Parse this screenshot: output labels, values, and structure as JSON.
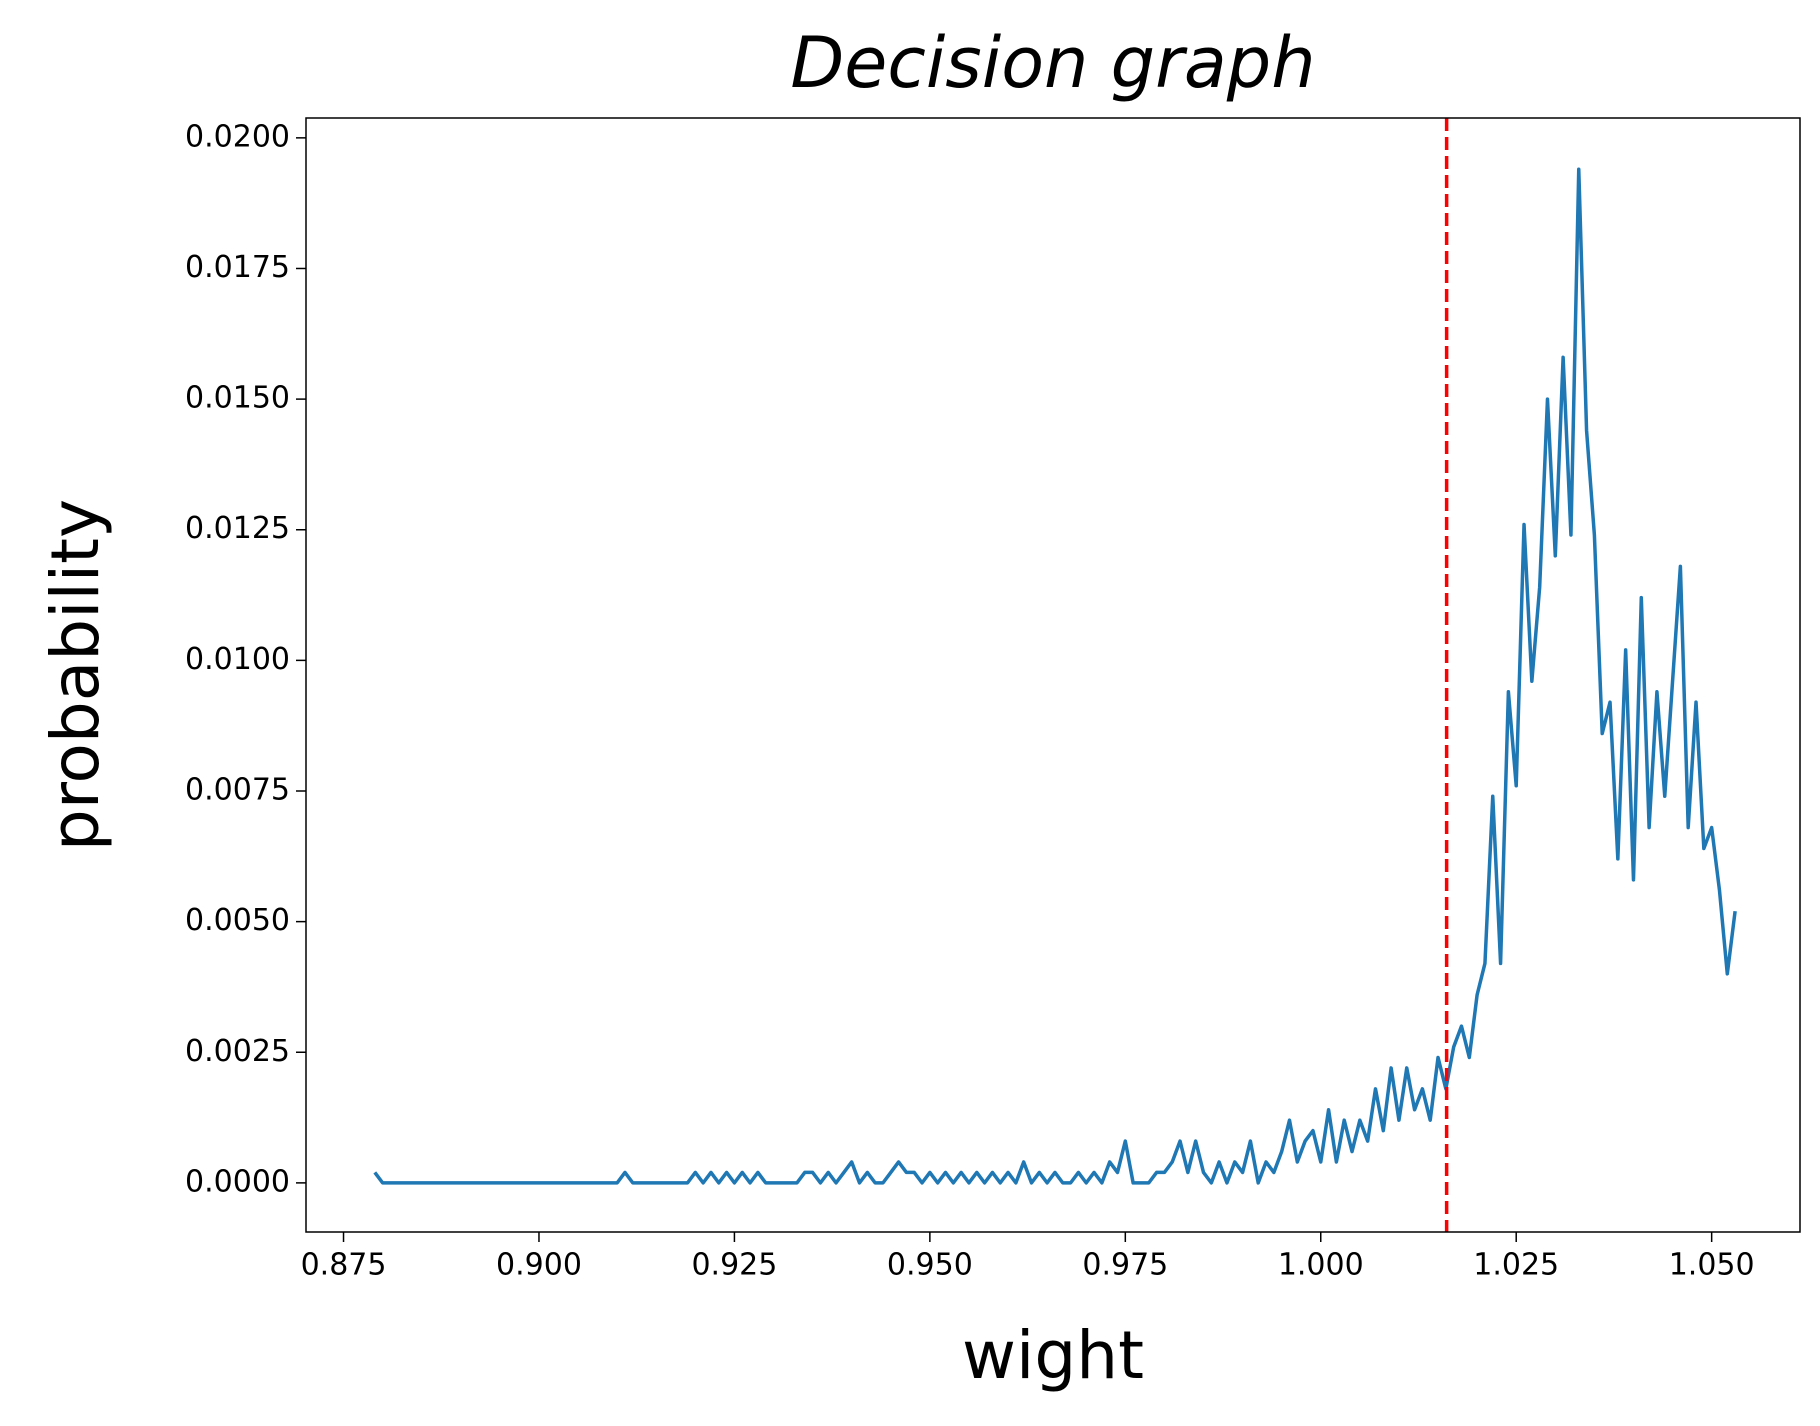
{
  "chart_data": {
    "type": "line",
    "title": "Decision graph",
    "x_label": "wight",
    "y_label": "probability",
    "x": [
      0.879,
      0.88,
      0.91,
      0.911,
      0.912,
      0.919,
      0.92,
      0.921,
      0.922,
      0.923,
      0.924,
      0.925,
      0.926,
      0.927,
      0.928,
      0.929,
      0.933,
      0.934,
      0.935,
      0.936,
      0.937,
      0.938,
      0.939,
      0.94,
      0.941,
      0.942,
      0.943,
      0.944,
      0.945,
      0.946,
      0.947,
      0.948,
      0.949,
      0.95,
      0.951,
      0.952,
      0.953,
      0.954,
      0.955,
      0.956,
      0.957,
      0.958,
      0.959,
      0.96,
      0.961,
      0.962,
      0.963,
      0.964,
      0.965,
      0.966,
      0.967,
      0.968,
      0.969,
      0.97,
      0.971,
      0.972,
      0.973,
      0.974,
      0.975,
      0.976,
      0.978,
      0.979,
      0.98,
      0.981,
      0.982,
      0.983,
      0.984,
      0.985,
      0.986,
      0.987,
      0.988,
      0.989,
      0.99,
      0.991,
      0.992,
      0.993,
      0.994,
      0.995,
      0.996,
      0.997,
      0.998,
      0.999,
      1.0,
      1.001,
      1.002,
      1.003,
      1.004,
      1.005,
      1.006,
      1.007,
      1.008,
      1.009,
      1.01,
      1.011,
      1.012,
      1.013,
      1.014,
      1.015,
      1.016,
      1.017,
      1.018,
      1.019,
      1.02,
      1.021,
      1.022,
      1.023,
      1.024,
      1.025,
      1.026,
      1.027,
      1.028,
      1.029,
      1.03,
      1.031,
      1.032,
      1.033,
      1.034,
      1.035,
      1.036,
      1.037,
      1.038,
      1.039,
      1.04,
      1.041,
      1.042,
      1.043,
      1.044,
      1.045,
      1.046,
      1.047,
      1.048,
      1.049,
      1.05,
      1.051,
      1.052,
      1.053
    ],
    "series": [
      {
        "color": "#1f77b4",
        "values": [
          0.0002,
          0,
          0,
          0.0002,
          0,
          0,
          0.0002,
          0,
          0.0002,
          0,
          0.0002,
          0,
          0.0002,
          0,
          0.0002,
          0,
          0,
          0.0002,
          0.0002,
          0,
          0.0002,
          0,
          0.0002,
          0.0004,
          0,
          0.0002,
          0,
          0,
          0.0002,
          0.0004,
          0.0002,
          0.0002,
          0,
          0.0002,
          0,
          0.0002,
          0,
          0.0002,
          0,
          0.0002,
          0,
          0.0002,
          0,
          0.0002,
          0,
          0.0004,
          0,
          0.0002,
          0,
          0.0002,
          0,
          0,
          0.0002,
          0,
          0.0002,
          0,
          0.0004,
          0.0002,
          0.0008,
          0,
          0,
          0.0002,
          0.0002,
          0.0004,
          0.0008,
          0.0002,
          0.0008,
          0.0002,
          0,
          0.0004,
          0,
          0.0004,
          0.0002,
          0.0008,
          0,
          0.0004,
          0.0002,
          0.0006,
          0.0012,
          0.0004,
          0.0008,
          0.001,
          0.0004,
          0.0014,
          0.0004,
          0.0012,
          0.0006,
          0.0012,
          0.0008,
          0.0018,
          0.001,
          0.0022,
          0.0012,
          0.0022,
          0.0014,
          0.0018,
          0.0012,
          0.0024,
          0.0018,
          0.0026,
          0.003,
          0.0024,
          0.0036,
          0.0042,
          0.0074,
          0.0042,
          0.0094,
          0.0076,
          0.0126,
          0.0096,
          0.0114,
          0.015,
          0.012,
          0.0158,
          0.0124,
          0.0194,
          0.0144,
          0.0124,
          0.0086,
          0.0092,
          0.0062,
          0.0102,
          0.0058,
          0.0112,
          0.0068,
          0.0094,
          0.0074,
          0.0096,
          0.0118,
          0.0068,
          0.0092,
          0.0064,
          0.0068,
          0.0056,
          0.004,
          0.0052
        ]
      }
    ],
    "vline": {
      "x": 1.0161,
      "color": "#ff0000",
      "dashed": true
    },
    "xlim": [
      0.8702,
      1.0613
    ],
    "xticks": [
      0.875,
      {
        "value": 0.9,
        "label": "0.900"
      },
      0.925,
      {
        "value": 0.95,
        "label": "0.950"
      },
      0.975,
      {
        "value": 1.0,
        "label": "1.000"
      },
      1.025,
      {
        "value": 1.05,
        "label": "1.050"
      }
    ],
    "ylim": [
      -0.00094,
      0.02038
    ],
    "yticks": [
      {
        "value": 0,
        "label": "0.0000"
      },
      0.0025,
      {
        "value": 0.005,
        "label": "0.0050"
      },
      0.0075,
      {
        "value": 0.01,
        "label": "0.0100"
      },
      0.0125,
      {
        "value": 0.015,
        "label": "0.0150"
      },
      0.0175,
      {
        "value": 0.02,
        "label": "0.0200"
      }
    ]
  }
}
